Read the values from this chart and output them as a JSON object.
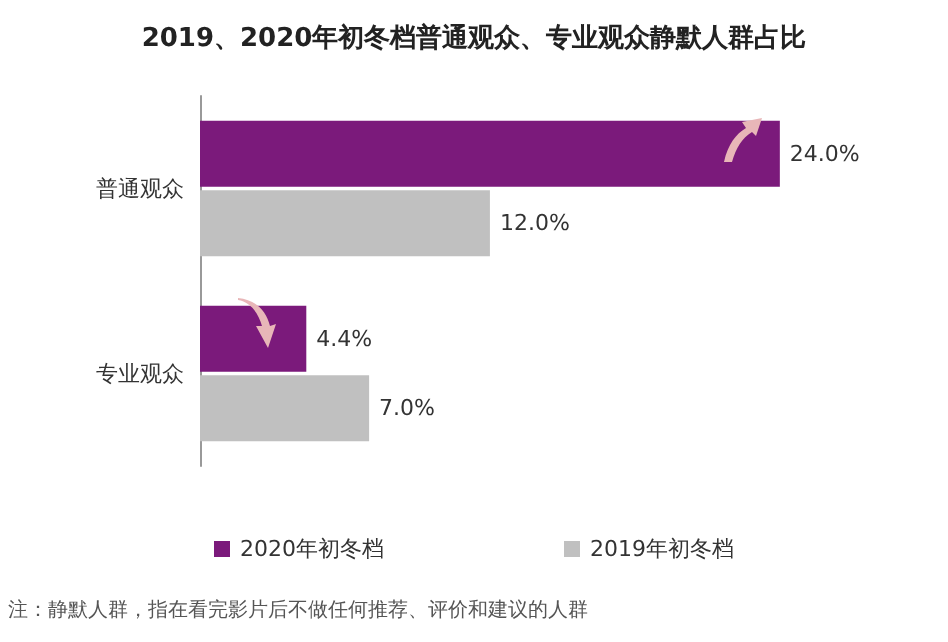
{
  "chart_data": {
    "type": "bar",
    "orientation": "horizontal",
    "title": "2019、2020年初冬档普通观众、专业观众静默人群占比",
    "categories": [
      "普通观众",
      "专业观众"
    ],
    "series": [
      {
        "name": "2020年初冬档",
        "color": "#7b1a7b",
        "values": [
          24.0,
          4.4
        ],
        "value_labels": [
          "24.0%",
          "4.4%"
        ]
      },
      {
        "name": "2019年初冬档",
        "color": "#c0c0c0",
        "values": [
          12.0,
          7.0
        ],
        "value_labels": [
          "12.0%",
          "7.0%"
        ]
      }
    ],
    "legend": "bottom",
    "annotations": [
      "注：静默人群，指在看完影片后不做任何推荐、评价和建议的人群"
    ]
  }
}
